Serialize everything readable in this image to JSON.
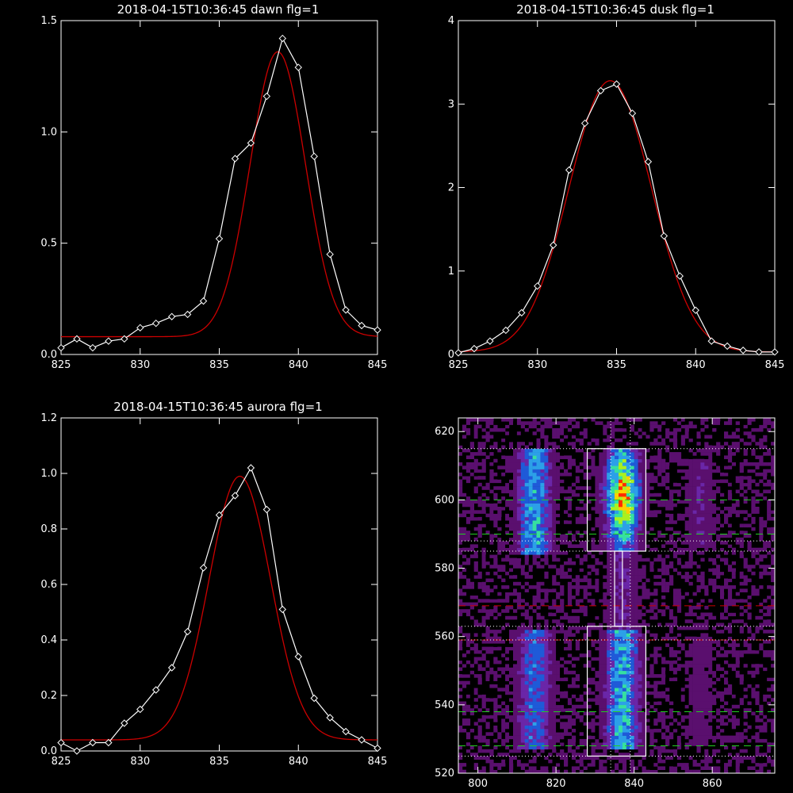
{
  "chart_data": [
    {
      "type": "line",
      "title": "2018-04-15T10:36:45 dawn flg=1",
      "xlim": [
        825,
        845
      ],
      "ylim": [
        0,
        1.5
      ],
      "xticks": [
        825,
        830,
        835,
        840,
        845
      ],
      "xtick_labels": [
        "825",
        "830",
        "835",
        "840",
        "845"
      ],
      "yticks": [
        0,
        0.5,
        1.0,
        1.5
      ],
      "ytick_labels": [
        "0.0",
        "0.5",
        "1.0",
        "1.5"
      ],
      "series": [
        {
          "role": "observed",
          "color": "#ffffff",
          "marker": "diamond",
          "x": [
            825,
            826,
            827,
            828,
            829,
            830,
            831,
            832,
            833,
            834,
            835,
            836,
            837,
            838,
            839,
            840,
            841,
            842,
            843,
            844,
            845
          ],
          "y": [
            0.03,
            0.07,
            0.03,
            0.06,
            0.07,
            0.12,
            0.14,
            0.17,
            0.18,
            0.24,
            0.52,
            0.88,
            0.95,
            1.16,
            1.42,
            1.29,
            0.89,
            0.45,
            0.2,
            0.13,
            0.11
          ]
        },
        {
          "role": "fit",
          "color": "#cc0000",
          "model": "gaussian",
          "amplitude": 1.28,
          "center": 838.7,
          "sigma": 1.75,
          "offset": 0.08
        }
      ]
    },
    {
      "type": "line",
      "title": "2018-04-15T10:36:45 dusk flg=1",
      "xlim": [
        825,
        845
      ],
      "ylim": [
        0,
        4
      ],
      "xticks": [
        825,
        830,
        835,
        840,
        845
      ],
      "xtick_labels": [
        "825",
        "830",
        "835",
        "840",
        "845"
      ],
      "yticks": [
        0,
        1,
        2,
        3,
        4
      ],
      "ytick_labels": [
        "0",
        "1",
        "2",
        "3",
        "4"
      ],
      "series": [
        {
          "role": "observed",
          "color": "#ffffff",
          "marker": "diamond",
          "x": [
            825,
            826,
            827,
            828,
            829,
            830,
            831,
            832,
            833,
            834,
            835,
            836,
            837,
            838,
            839,
            840,
            841,
            842,
            843,
            844,
            845
          ],
          "y": [
            0.02,
            0.07,
            0.16,
            0.29,
            0.5,
            0.82,
            1.31,
            2.21,
            2.77,
            3.16,
            3.24,
            2.89,
            2.31,
            1.42,
            0.94,
            0.53,
            0.16,
            0.1,
            0.05,
            0.03,
            0.03
          ]
        },
        {
          "role": "fit",
          "color": "#cc0000",
          "model": "gaussian",
          "amplitude": 3.25,
          "center": 834.6,
          "sigma": 2.6,
          "offset": 0.03
        }
      ]
    },
    {
      "type": "line",
      "title": "2018-04-15T10:36:45 aurora flg=1",
      "xlim": [
        825,
        845
      ],
      "ylim": [
        0,
        1.2
      ],
      "xticks": [
        825,
        830,
        835,
        840,
        845
      ],
      "xtick_labels": [
        "825",
        "830",
        "835",
        "840",
        "845"
      ],
      "yticks": [
        0,
        0.2,
        0.4,
        0.6,
        0.8,
        1.0,
        1.2
      ],
      "ytick_labels": [
        "0.0",
        "0.2",
        "0.4",
        "0.6",
        "0.8",
        "1.0",
        "1.2"
      ],
      "series": [
        {
          "role": "observed",
          "color": "#ffffff",
          "marker": "diamond",
          "x": [
            825,
            826,
            827,
            828,
            829,
            830,
            831,
            832,
            833,
            834,
            835,
            836,
            837,
            838,
            839,
            840,
            841,
            842,
            843,
            844,
            845
          ],
          "y": [
            0.03,
            0.0,
            0.03,
            0.03,
            0.1,
            0.15,
            0.22,
            0.3,
            0.43,
            0.66,
            0.85,
            0.92,
            1.02,
            0.87,
            0.51,
            0.34,
            0.19,
            0.12,
            0.07,
            0.04,
            0.01
          ]
        },
        {
          "role": "fit",
          "color": "#cc0000",
          "model": "gaussian",
          "amplitude": 0.95,
          "center": 836.3,
          "sigma": 1.95,
          "offset": 0.04
        }
      ]
    },
    {
      "type": "heatmap",
      "title": "",
      "xlim": [
        795,
        876
      ],
      "ylim": [
        520,
        624
      ],
      "xticks": [
        800,
        820,
        840,
        860
      ],
      "xtick_labels": [
        "800",
        "820",
        "840",
        "860"
      ],
      "yticks": [
        520,
        540,
        560,
        580,
        600,
        620
      ],
      "ytick_labels": [
        "520",
        "540",
        "560",
        "580",
        "600",
        "620"
      ],
      "colormap": [
        "#000000",
        "#5a0f6e",
        "#6a26a8",
        "#1f5ad8",
        "#2ca0e8",
        "#36e0a0",
        "#aaf020",
        "#ffd000",
        "#ff2a00"
      ],
      "bands": [
        {
          "center": 814.5,
          "width": 6.0,
          "rows": [
            [
              527,
              562,
              0.42
            ],
            [
              584,
              615,
              0.55
            ]
          ]
        },
        {
          "center": 837.0,
          "width": 6.0,
          "rows": [
            [
              527,
              562,
              0.58
            ],
            [
              562,
              585,
              0.22
            ],
            [
              585,
              615,
              1.0
            ]
          ]
        },
        {
          "center": 857.0,
          "width": 5.0,
          "rows": [
            [
              528,
              560,
              0.14
            ],
            [
              586,
              612,
              0.2
            ]
          ]
        }
      ],
      "boxes": [
        {
          "x0": 828,
          "x1": 843,
          "y0": 585,
          "y1": 615
        },
        {
          "x0": 828,
          "x1": 843,
          "y0": 525,
          "y1": 563
        },
        {
          "x0": 835,
          "x1": 837,
          "y0": 563,
          "y1": 585
        }
      ],
      "vlines_dotted": [
        834,
        839
      ],
      "hlines": [
        {
          "y": 615,
          "color": "#ffffff",
          "style": "dotted"
        },
        {
          "y": 600,
          "color": "#22cc22",
          "style": "dashed"
        },
        {
          "y": 590,
          "color": "#22cc22",
          "style": "dashed"
        },
        {
          "y": 588,
          "color": "#ffffff",
          "style": "dotted"
        },
        {
          "y": 585,
          "color": "#ffffff",
          "style": "dotted"
        },
        {
          "y": 569,
          "color": "#cc0000",
          "style": "dashed"
        },
        {
          "y": 563,
          "color": "#ffffff",
          "style": "dotted"
        },
        {
          "y": 559,
          "color": "#cc0000",
          "style": "dashed"
        },
        {
          "y": 559,
          "color": "#ffffff",
          "style": "dotted"
        },
        {
          "y": 538,
          "color": "#22cc22",
          "style": "dashed"
        },
        {
          "y": 528,
          "color": "#22cc22",
          "style": "dashed"
        },
        {
          "y": 525,
          "color": "#ffffff",
          "style": "dotted"
        }
      ]
    }
  ]
}
